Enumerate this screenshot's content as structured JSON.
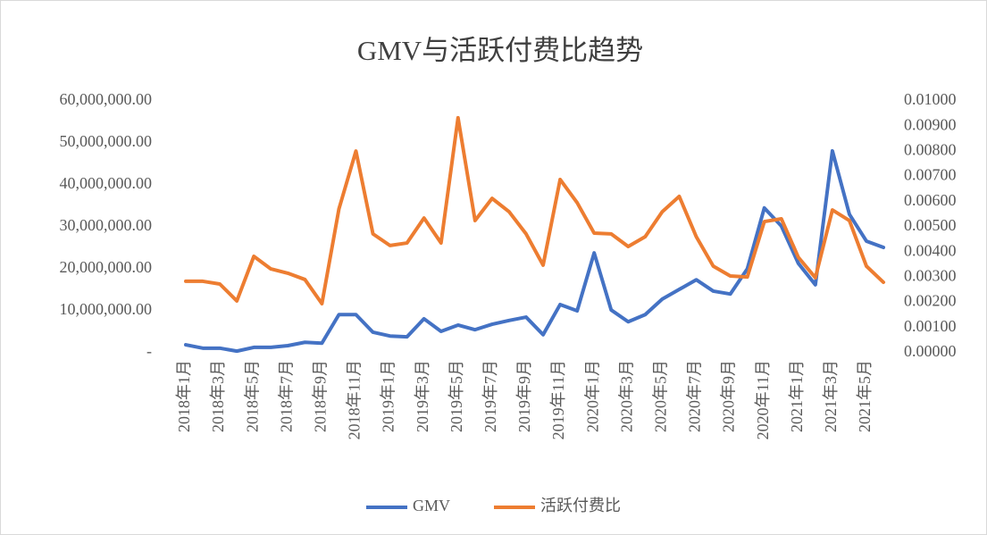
{
  "chart_data": {
    "type": "line",
    "title": "GMV与活跃付费比趋势",
    "categories": [
      "2018年1月",
      null,
      "2018年3月",
      null,
      "2018年5月",
      null,
      "2018年7月",
      null,
      "2018年9月",
      null,
      "2018年11月",
      null,
      "2019年1月",
      null,
      "2019年3月",
      null,
      "2019年5月",
      null,
      "2019年7月",
      null,
      "2019年9月",
      null,
      "2019年11月",
      null,
      "2020年1月",
      null,
      "2020年3月",
      null,
      "2020年5月",
      null,
      "2020年7月",
      null,
      "2020年9月",
      null,
      "2020年11月",
      null,
      "2021年1月",
      null,
      "2021年3月",
      null,
      "2021年5月",
      null
    ],
    "series": [
      {
        "name": "GMV",
        "color": "#4472c4",
        "values": [
          1900000,
          1100000,
          1100000,
          400000,
          1300000,
          1300000,
          1700000,
          2500000,
          2300000,
          9100000,
          9100000,
          4900000,
          4000000,
          3800000,
          8100000,
          5100000,
          6600000,
          5500000,
          6800000,
          7700000,
          8500000,
          4300000,
          11500000,
          10000000,
          23800000,
          10200000,
          7400000,
          9100000,
          12800000,
          15100000,
          17400000,
          14700000,
          14000000,
          20000000,
          34500000,
          30200000,
          21300000,
          16200000,
          48100000,
          33000000,
          26600000,
          25100000
        ]
      },
      {
        "name": "活跃付费比",
        "color": "#ed7d31",
        "axis": "y2",
        "values": [
          0.00284,
          0.00284,
          0.00273,
          0.00206,
          0.00383,
          0.00333,
          0.00316,
          0.00291,
          0.00195,
          0.00571,
          0.00801,
          0.00472,
          0.00426,
          0.00436,
          0.00535,
          0.00436,
          0.00933,
          0.00525,
          0.00613,
          0.0056,
          0.00472,
          0.00348,
          0.00688,
          0.00596,
          0.00475,
          0.00472,
          0.00422,
          0.00461,
          0.0056,
          0.00621,
          0.00461,
          0.00344,
          0.00305,
          0.00301,
          0.00521,
          0.00532,
          0.00379,
          0.00298,
          0.00567,
          0.00525,
          0.00344,
          0.0028
        ]
      }
    ],
    "ylim": [
      0,
      60000000
    ],
    "yticks": [
      {
        "value": 0,
        "label": "-"
      },
      {
        "value": 10000000,
        "label": "10,000,000.00"
      },
      {
        "value": 20000000,
        "label": "20,000,000.00"
      },
      {
        "value": 30000000,
        "label": "30,000,000.00"
      },
      {
        "value": 40000000,
        "label": "40,000,000.00"
      },
      {
        "value": 50000000,
        "label": "50,000,000.00"
      },
      {
        "value": 60000000,
        "label": "60,000,000.00"
      }
    ],
    "y2lim": [
      0,
      0.01
    ],
    "y2ticks": [
      {
        "value": 0,
        "label": "0.00000"
      },
      {
        "value": 0.001,
        "label": "0.00100"
      },
      {
        "value": 0.002,
        "label": "0.00200"
      },
      {
        "value": 0.003,
        "label": "0.00300"
      },
      {
        "value": 0.004,
        "label": "0.00400"
      },
      {
        "value": 0.005,
        "label": "0.00500"
      },
      {
        "value": 0.006,
        "label": "0.00600"
      },
      {
        "value": 0.007,
        "label": "0.00700"
      },
      {
        "value": 0.008,
        "label": "0.00800"
      },
      {
        "value": 0.009,
        "label": "0.00900"
      },
      {
        "value": 0.01,
        "label": "0.01000"
      }
    ],
    "legend": "bottom"
  }
}
